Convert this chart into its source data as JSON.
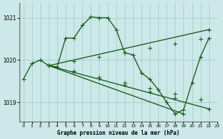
{
  "xlabel": "Graphe pression niveau de la mer (hPa)",
  "xlim": [
    -0.5,
    23
  ],
  "ylim": [
    1018.55,
    1021.35
  ],
  "yticks": [
    1019,
    1020,
    1021
  ],
  "xticks": [
    0,
    1,
    2,
    3,
    4,
    5,
    6,
    7,
    8,
    9,
    10,
    11,
    12,
    13,
    14,
    15,
    16,
    17,
    18,
    19,
    20,
    21,
    22,
    23
  ],
  "bg_color": "#cce8e8",
  "grid_color": "#9dc8c8",
  "line_color": "#1a5e1a",
  "line_width": 1.0,
  "marker": "+",
  "marker_size": 4,
  "series1_x": [
    0,
    1,
    2,
    3,
    4,
    5,
    6,
    7,
    8,
    9,
    10,
    11,
    12,
    13,
    14,
    15,
    16,
    17,
    18,
    19,
    20,
    21,
    22
  ],
  "series1_y": [
    1019.55,
    1019.92,
    1020.0,
    1019.87,
    1019.84,
    1020.52,
    1020.52,
    1020.82,
    1021.02,
    1021.0,
    1021.0,
    1020.72,
    1020.18,
    1020.12,
    1019.7,
    1019.55,
    1019.3,
    1019.0,
    1018.73,
    1018.83,
    1019.47,
    1020.08,
    1020.52
  ],
  "series2_x": [
    3,
    22
  ],
  "series2_y": [
    1019.87,
    1020.72
  ],
  "series3_x": [
    3,
    19
  ],
  "series3_y": [
    1019.87,
    1018.73
  ],
  "series4_x": [
    3,
    22
  ],
  "series4_y": [
    1019.87,
    1018.85
  ],
  "series2_markers_x": [
    3,
    6,
    9,
    12,
    15,
    18,
    21,
    22
  ],
  "series2_markers_y": [
    1019.87,
    1019.97,
    1020.08,
    1020.18,
    1020.28,
    1020.39,
    1020.5,
    1020.72
  ],
  "series3_markers_x": [
    3,
    6,
    9,
    12,
    15,
    18,
    19
  ],
  "series3_markers_y": [
    1019.87,
    1019.72,
    1019.57,
    1019.41,
    1019.26,
    1019.11,
    1018.73
  ],
  "series4_markers_x": [
    3,
    6,
    9,
    12,
    15,
    18,
    21,
    22
  ],
  "series4_markers_y": [
    1019.87,
    1019.74,
    1019.6,
    1019.47,
    1019.34,
    1019.21,
    1019.08,
    1018.85
  ]
}
